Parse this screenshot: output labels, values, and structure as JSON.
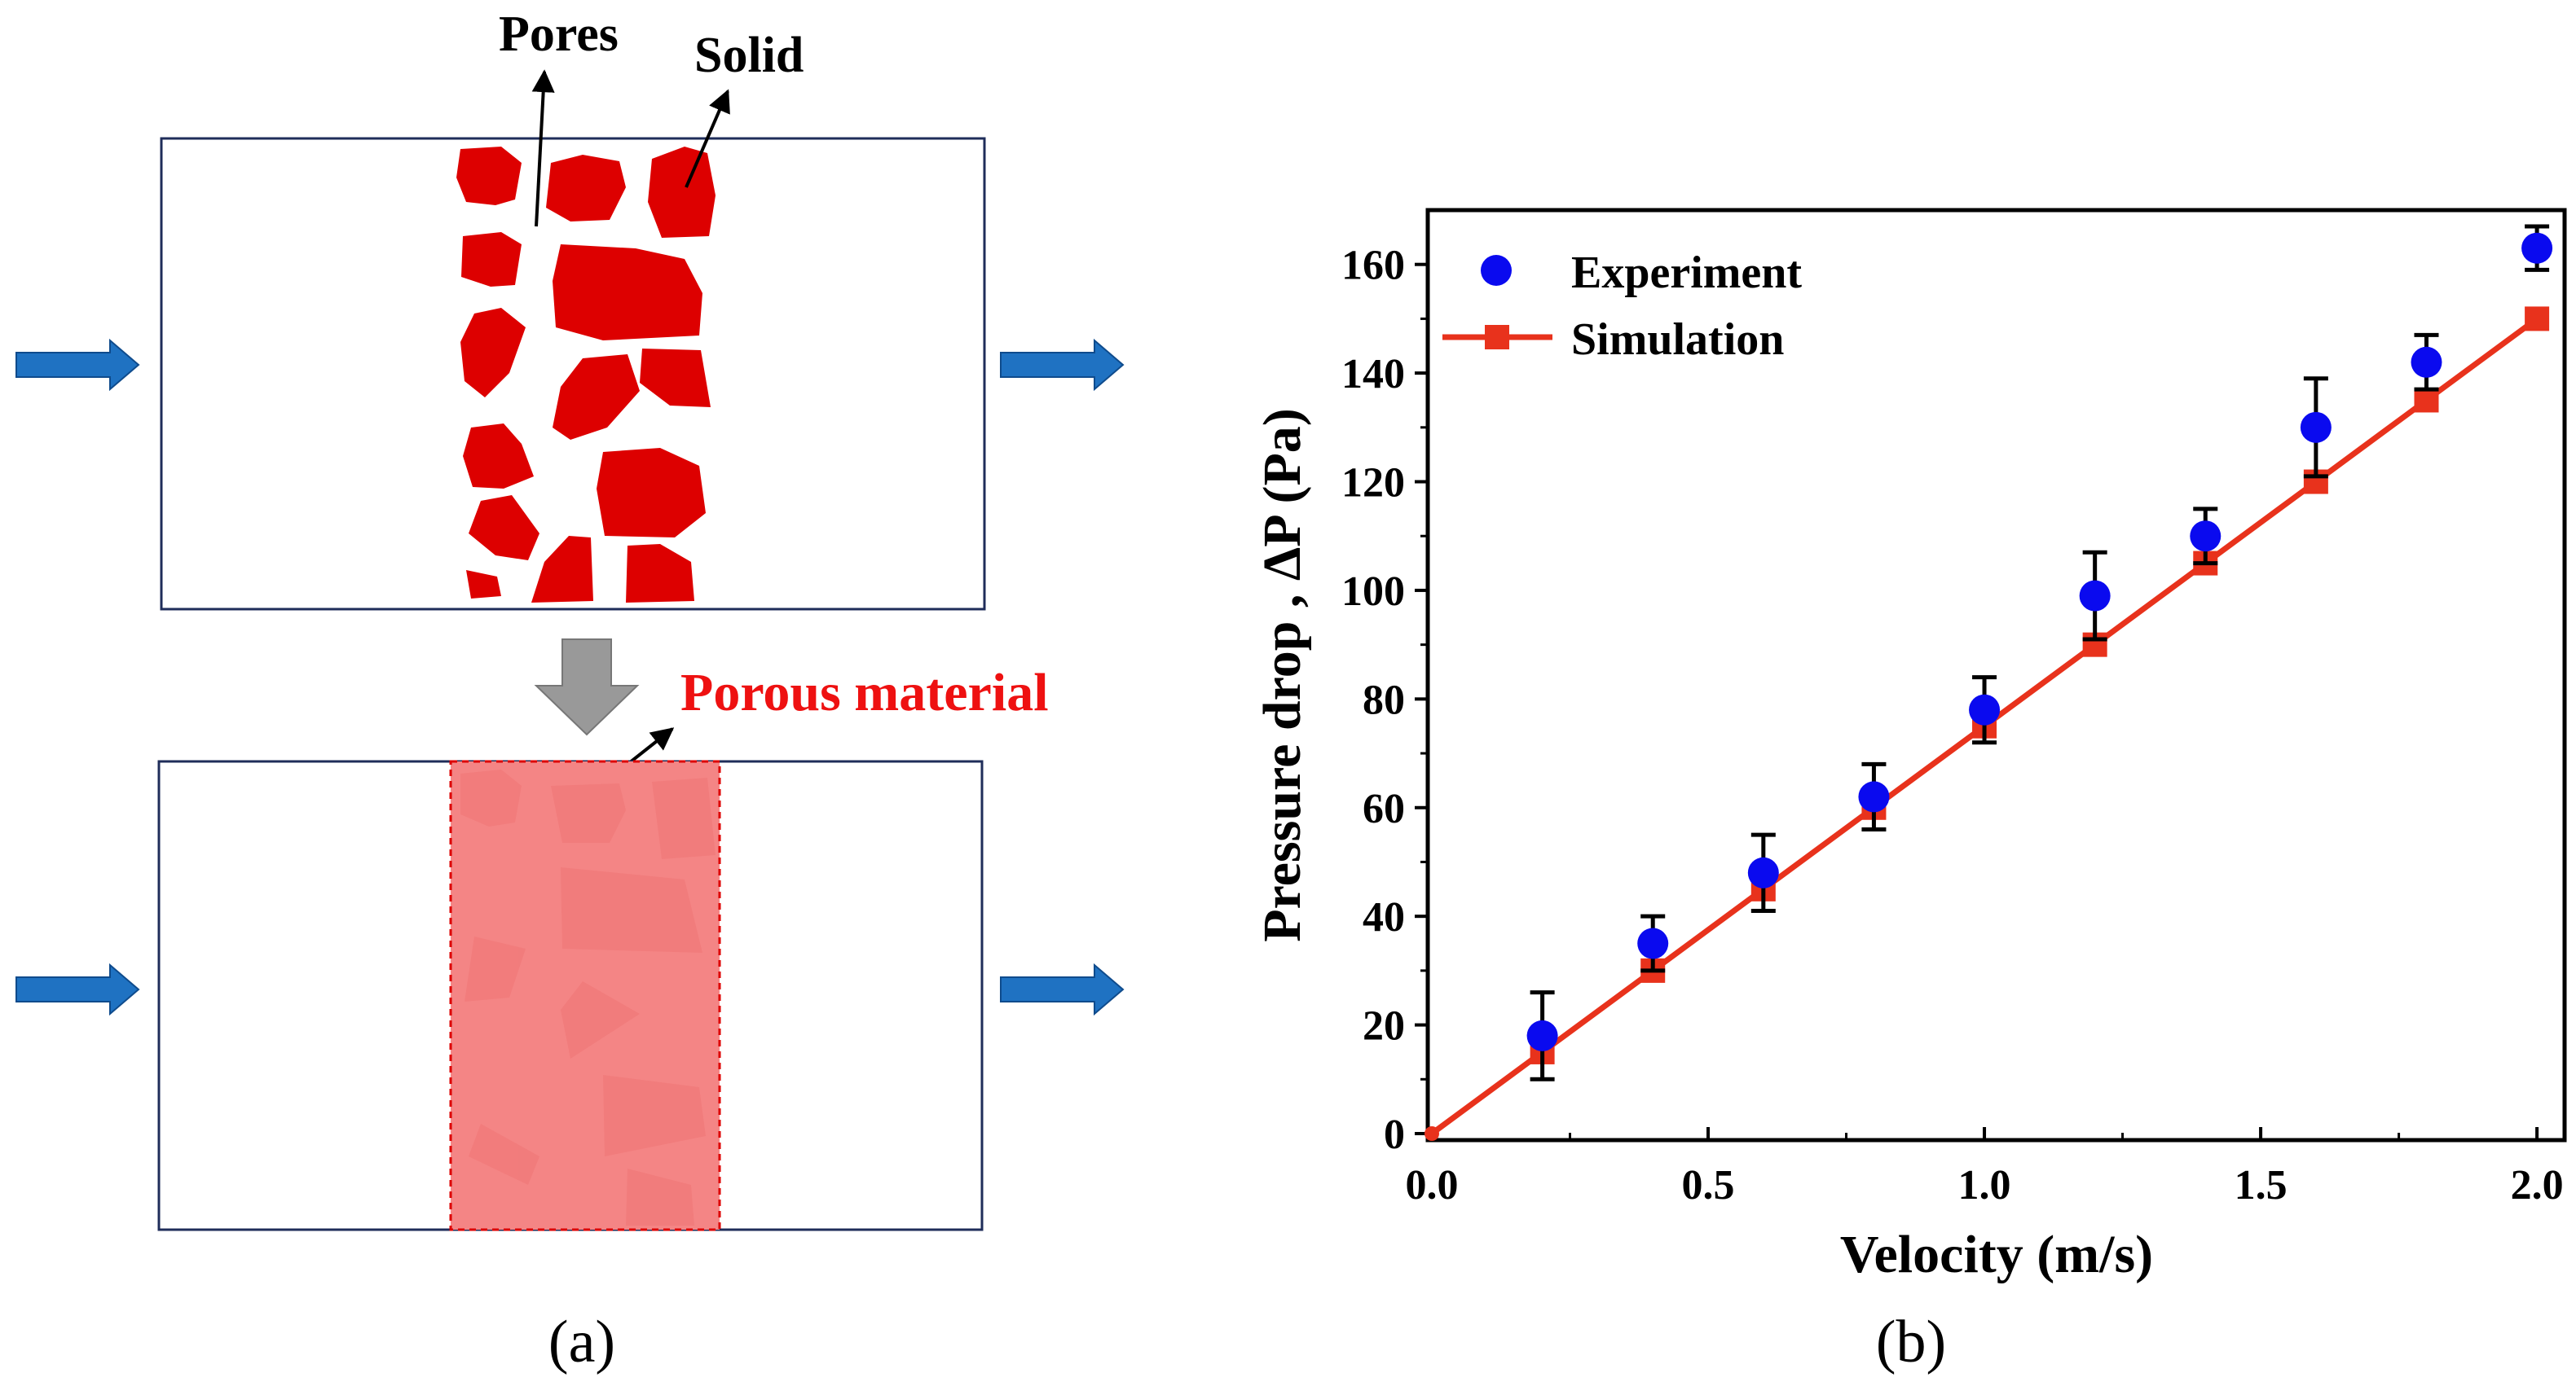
{
  "panel_a": {
    "label_pores": "Pores",
    "label_solid": "Solid",
    "label_porous": "Porous material",
    "caption": "(a)",
    "colors": {
      "solid": "#dd0000",
      "porous_fill": "#f48585",
      "porous_pattern": "#f07575",
      "porous_text": "#ee1111",
      "flow_arrow": "#1f72c2",
      "down_arrow": "#999999",
      "frame": "#1f2d5a"
    }
  },
  "panel_b": {
    "caption": "(b)"
  },
  "chart_data": {
    "type": "scatter",
    "title": "",
    "xlabel": "Velocity (m/s)",
    "ylabel": "Pressure drop , ΔP (Pa)",
    "xlim": [
      0,
      2.05
    ],
    "ylim": [
      0,
      170
    ],
    "xticks": [
      0.0,
      0.5,
      1.0,
      1.5,
      2.0
    ],
    "xtick_labels": [
      "0.0",
      "0.5",
      "1.0",
      "1.5",
      "2.0"
    ],
    "yticks": [
      0,
      20,
      40,
      60,
      80,
      100,
      120,
      140,
      160
    ],
    "ytick_labels": [
      "0",
      "20",
      "40",
      "60",
      "80",
      "100",
      "120",
      "140",
      "160"
    ],
    "legend_position": "top-left",
    "series": [
      {
        "name": "Experiment",
        "style": "points-with-error-bars",
        "color": "#0a0aef",
        "x": [
          0.2,
          0.4,
          0.6,
          0.8,
          1.0,
          1.2,
          1.4,
          1.6,
          1.8,
          2.0
        ],
        "y": [
          18,
          35,
          48,
          62,
          78,
          99,
          110,
          130,
          142,
          163
        ],
        "yerr_upper": [
          8,
          5,
          7,
          6,
          6,
          8,
          5,
          9,
          5,
          4
        ],
        "yerr_lower": [
          8,
          5,
          7,
          6,
          6,
          8,
          5,
          9,
          5,
          4
        ]
      },
      {
        "name": "Simulation",
        "style": "line-with-square-markers",
        "color": "#e8321c",
        "x": [
          0.0,
          0.2,
          0.4,
          0.6,
          0.8,
          1.0,
          1.2,
          1.4,
          1.6,
          1.8,
          2.0
        ],
        "y": [
          0,
          15,
          30,
          45,
          60,
          75,
          90,
          105,
          120,
          135,
          150
        ]
      }
    ]
  }
}
